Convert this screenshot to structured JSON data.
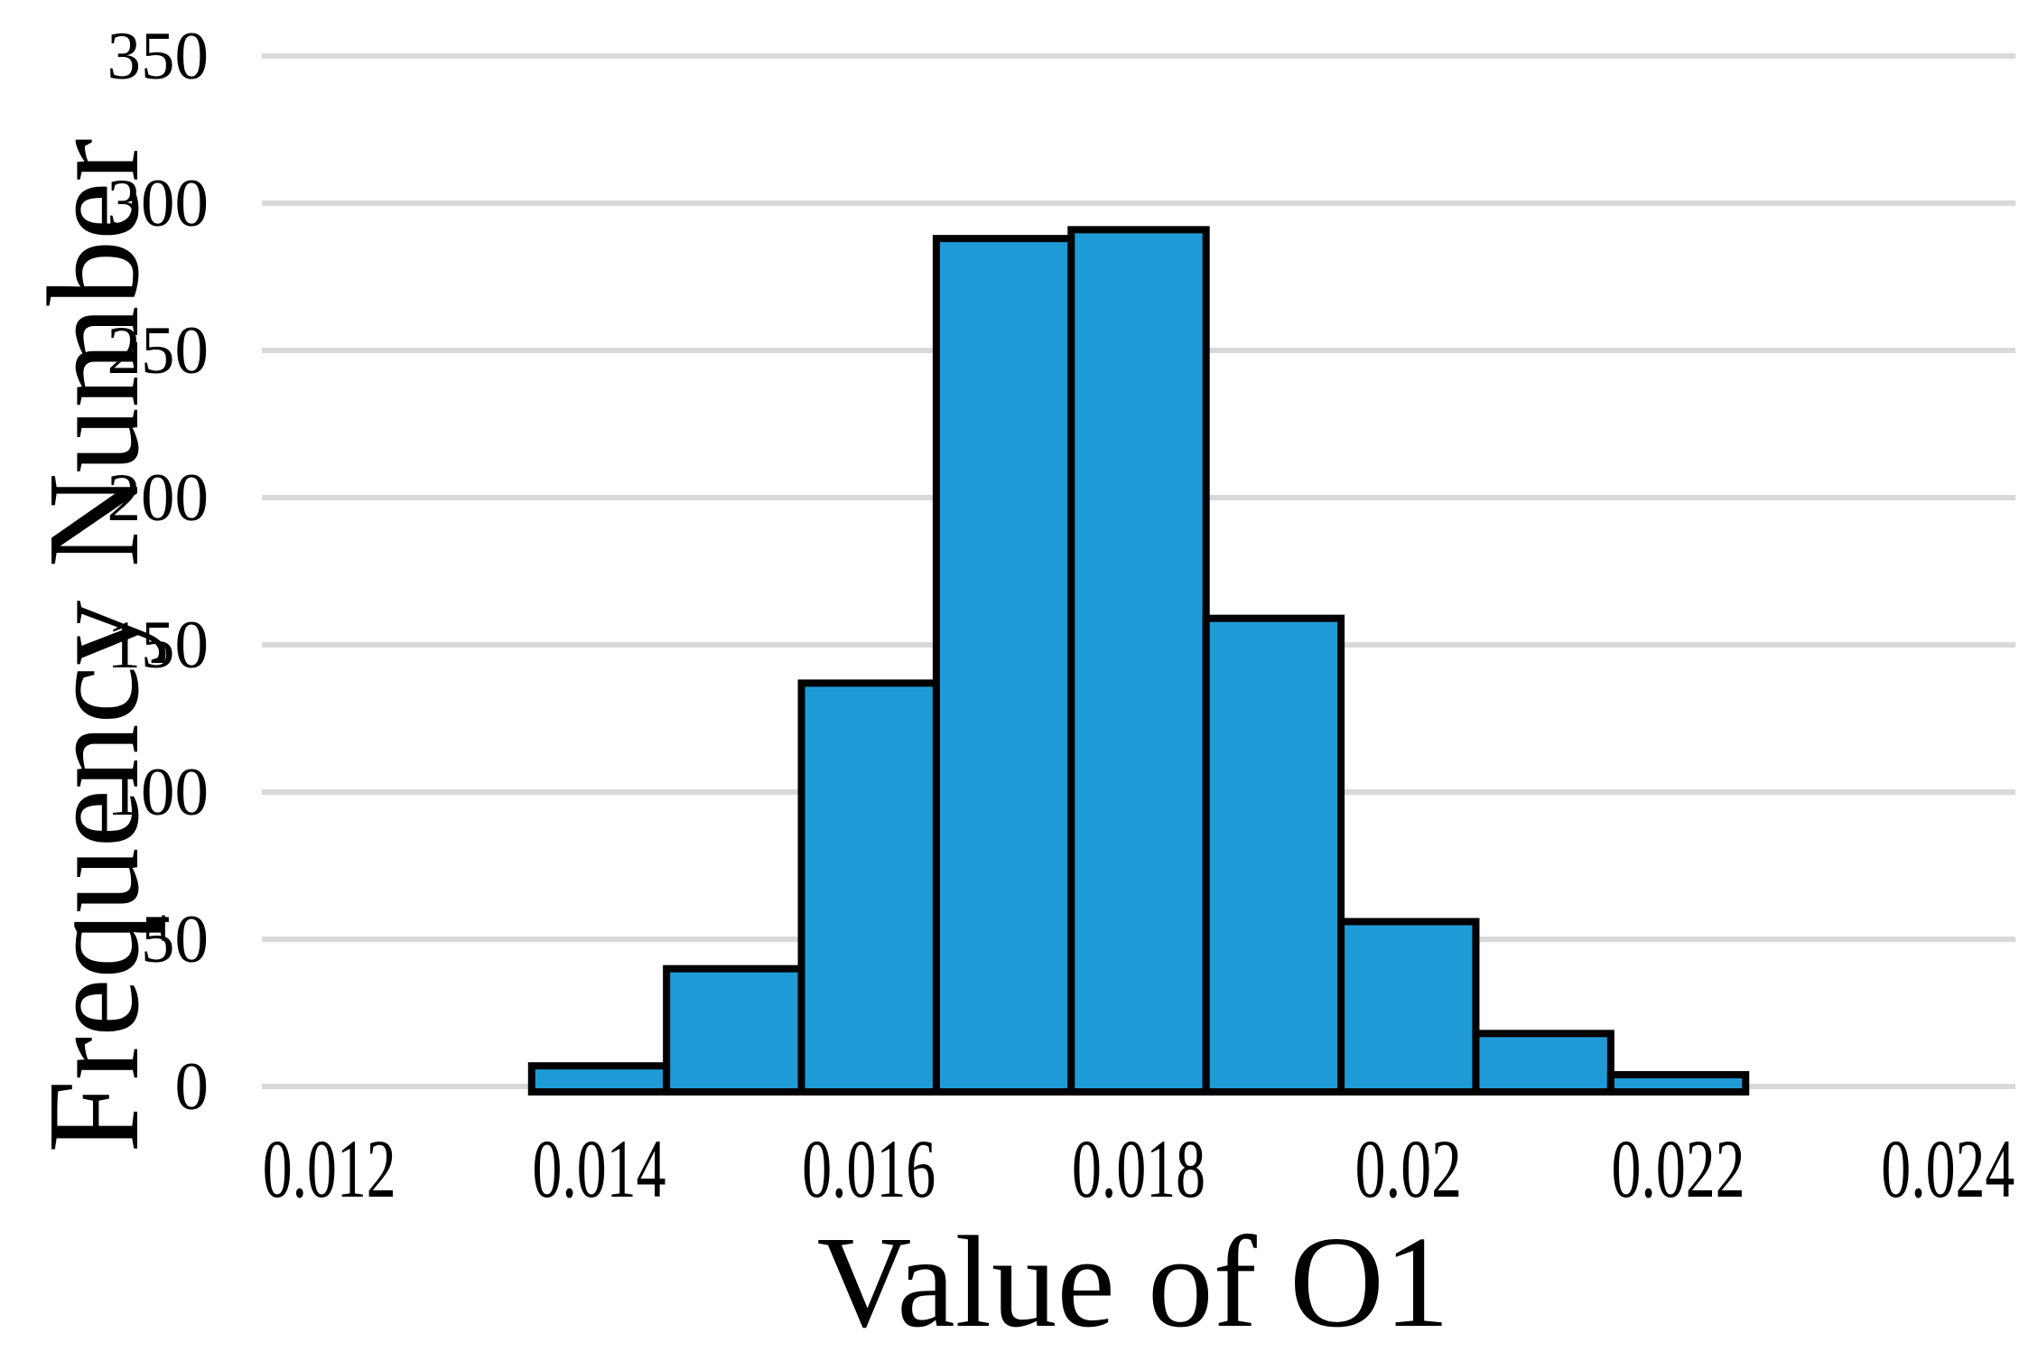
{
  "chart_data": {
    "type": "bar",
    "subtype": "histogram",
    "title": "",
    "xlabel": "Value of O1",
    "ylabel": "Frequency Number",
    "bin_edges": [
      0.0135,
      0.0145,
      0.0155,
      0.0165,
      0.0175,
      0.0185,
      0.0195,
      0.0205,
      0.0215,
      0.0225
    ],
    "bin_centers": [
      0.014,
      0.015,
      0.016,
      0.017,
      0.018,
      0.019,
      0.02,
      0.021,
      0.022
    ],
    "values": [
      7,
      40,
      137,
      288,
      291,
      159,
      56,
      18,
      4
    ],
    "xlim": [
      0.0115,
      0.0245
    ],
    "ylim": [
      0,
      350
    ],
    "x_ticks": [
      {
        "value": 0.012,
        "label": "0.012"
      },
      {
        "value": 0.014,
        "label": "0.014"
      },
      {
        "value": 0.016,
        "label": "0.016"
      },
      {
        "value": 0.018,
        "label": "0.018"
      },
      {
        "value": 0.02,
        "label": "0.02"
      },
      {
        "value": 0.022,
        "label": "0.022"
      },
      {
        "value": 0.024,
        "label": "0.024"
      }
    ],
    "y_ticks": [
      {
        "value": 0,
        "label": "0"
      },
      {
        "value": 50,
        "label": "50"
      },
      {
        "value": 100,
        "label": "100"
      },
      {
        "value": 150,
        "label": "150"
      },
      {
        "value": 200,
        "label": "200"
      },
      {
        "value": 250,
        "label": "250"
      },
      {
        "value": 300,
        "label": "300"
      },
      {
        "value": 350,
        "label": "350"
      }
    ],
    "grid": "horizontal",
    "legend": "none",
    "colors": {
      "bar_fill": "#1E9BD7",
      "bar_border": "#000000",
      "gridline": "#D9D9D9",
      "text": "#000000",
      "background": "#FFFFFF"
    }
  }
}
